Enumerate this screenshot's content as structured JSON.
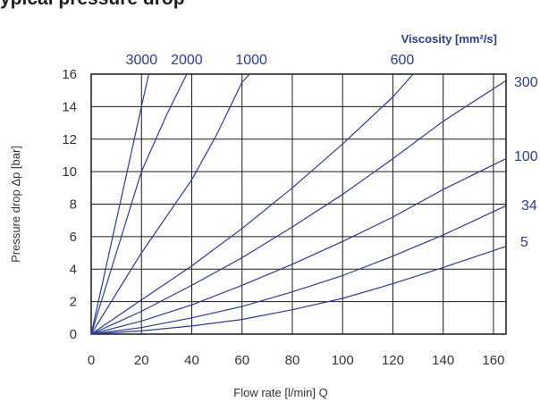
{
  "header": {
    "title": "ypical pressure drop"
  },
  "chart_data": {
    "type": "line",
    "title": "",
    "xlabel": "Flow rate [l/min] Q",
    "ylabel": "Pressure drop Δp [bar]",
    "legend_title": "Viscosity [mm²/s]",
    "xlim": [
      0,
      165
    ],
    "ylim": [
      0,
      16
    ],
    "x_ticks": [
      0,
      20,
      40,
      60,
      80,
      100,
      120,
      140,
      160
    ],
    "y_ticks": [
      0,
      2,
      4,
      6,
      8,
      10,
      12,
      14,
      16
    ],
    "grid": true,
    "colors": {
      "lines": "#2a3d8f",
      "grid": "#1a1a1a",
      "text": "#333333",
      "accent": "#2a3d8f"
    },
    "series": [
      {
        "name": "3000",
        "label_position": "top",
        "points": [
          [
            0,
            0
          ],
          [
            5,
            3.5
          ],
          [
            10,
            7
          ],
          [
            15,
            10.5
          ],
          [
            20,
            14
          ],
          [
            22.9,
            16
          ]
        ]
      },
      {
        "name": "2000",
        "label_position": "top",
        "points": [
          [
            0,
            0
          ],
          [
            10,
            5
          ],
          [
            20,
            10
          ],
          [
            30,
            13.5
          ],
          [
            38,
            16
          ]
        ]
      },
      {
        "name": "1000",
        "label_position": "top",
        "points": [
          [
            0,
            0
          ],
          [
            20,
            5
          ],
          [
            40,
            9.5
          ],
          [
            50,
            12.3
          ],
          [
            60,
            15.5
          ],
          [
            63,
            16
          ]
        ]
      },
      {
        "name": "600",
        "label_position": "top",
        "points": [
          [
            0,
            0
          ],
          [
            20,
            2.1
          ],
          [
            40,
            4.2
          ],
          [
            60,
            6.5
          ],
          [
            80,
            9
          ],
          [
            100,
            11.7
          ],
          [
            120,
            14.6
          ],
          [
            128,
            16
          ]
        ]
      },
      {
        "name": "300",
        "label_position": "right",
        "points": [
          [
            0,
            0
          ],
          [
            20,
            1.4
          ],
          [
            40,
            3
          ],
          [
            60,
            4.7
          ],
          [
            80,
            6.6
          ],
          [
            100,
            8.6
          ],
          [
            120,
            10.8
          ],
          [
            140,
            13.1
          ],
          [
            165,
            15.6
          ]
        ]
      },
      {
        "name": "100",
        "label_position": "right",
        "points": [
          [
            0,
            0
          ],
          [
            20,
            0.8
          ],
          [
            40,
            1.8
          ],
          [
            60,
            3
          ],
          [
            80,
            4.3
          ],
          [
            100,
            5.7
          ],
          [
            120,
            7.2
          ],
          [
            140,
            8.9
          ],
          [
            165,
            10.8
          ]
        ]
      },
      {
        "name": "34",
        "label_position": "right",
        "points": [
          [
            0,
            0
          ],
          [
            20,
            0.4
          ],
          [
            40,
            1
          ],
          [
            60,
            1.7
          ],
          [
            80,
            2.6
          ],
          [
            100,
            3.6
          ],
          [
            120,
            4.8
          ],
          [
            140,
            6.1
          ],
          [
            165,
            7.9
          ]
        ]
      },
      {
        "name": "5",
        "label_position": "right",
        "points": [
          [
            0,
            0
          ],
          [
            20,
            0.2
          ],
          [
            40,
            0.5
          ],
          [
            60,
            0.9
          ],
          [
            80,
            1.5
          ],
          [
            100,
            2.2
          ],
          [
            120,
            3.1
          ],
          [
            140,
            4.1
          ],
          [
            165,
            5.4
          ]
        ]
      }
    ]
  }
}
